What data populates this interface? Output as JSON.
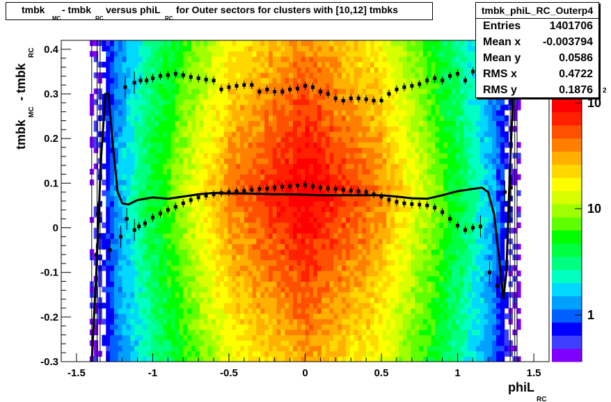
{
  "title": {
    "segments": [
      {
        "text": "tmbk",
        "sub": "MC"
      },
      {
        "text": " - tmbk",
        "sub": "RC"
      },
      {
        "text": " versus phiL",
        "sub": "RC"
      },
      {
        "text": " for Outer sectors for clusters with [10,12] tmbks",
        "sub": ""
      }
    ]
  },
  "stats": {
    "name": "tmbk_phiL_RC_Outerp4",
    "rows": [
      {
        "label": "Entries",
        "value": "1401706"
      },
      {
        "label": "Mean x",
        "value": "-0.003794"
      },
      {
        "label": "Mean y",
        "value": "0.0586"
      },
      {
        "label": "RMS x",
        "value": "0.4722"
      },
      {
        "label": "RMS y",
        "value": "0.1876"
      }
    ]
  },
  "palette": {
    "labels": [
      "1",
      "10",
      "10"
    ],
    "exponent": "2",
    "colors": [
      "#7f00ff",
      "#3f3fff",
      "#0000ff",
      "#0060ff",
      "#00a0ff",
      "#00d8ff",
      "#00ffc0",
      "#00ff80",
      "#00ff40",
      "#00ff00",
      "#60ff00",
      "#a0ff00",
      "#d8ff00",
      "#ffff00",
      "#ffd800",
      "#ffb000",
      "#ff8000",
      "#ff5000",
      "#ff2000",
      "#ff0000"
    ]
  },
  "chart_data": {
    "type": "heatmap",
    "title": "tmbk_MC - tmbk_RC versus phiL_RC for Outer sectors for clusters with [10,12] tmbks",
    "xlabel": "phiL_RC",
    "ylabel": "tmbk_MC - tmbk_RC",
    "xlim": [
      -1.6,
      1.6
    ],
    "ylim": [
      -0.3,
      0.42
    ],
    "x_ticks": [
      "-1.5",
      "-1",
      "-0.5",
      "0",
      "0.5",
      "1",
      "1.5"
    ],
    "y_ticks": [
      "-0.3",
      "-0.2",
      "-0.1",
      "0",
      "0.1",
      "0.2",
      "0.3",
      "0.4"
    ],
    "z_scale": "log",
    "series": [
      {
        "name": "profile",
        "points": [
          [
            -1.37,
            -0.06
          ],
          [
            -1.36,
            0.03
          ],
          [
            -1.28,
            -0.05
          ],
          [
            -1.21,
            -0.02
          ],
          [
            -1.17,
            0.02
          ],
          [
            -1.12,
            -0.005
          ],
          [
            -1.09,
            0.003
          ],
          [
            -1.05,
            0.01
          ],
          [
            -1.0,
            0.023
          ],
          [
            -0.95,
            0.032
          ],
          [
            -0.9,
            0.04
          ],
          [
            -0.85,
            0.047
          ],
          [
            -0.8,
            0.055
          ],
          [
            -0.75,
            0.062
          ],
          [
            -0.7,
            0.068
          ],
          [
            -0.65,
            0.072
          ],
          [
            -0.6,
            0.075
          ],
          [
            -0.55,
            0.078
          ],
          [
            -0.5,
            0.08
          ],
          [
            -0.45,
            0.082
          ],
          [
            -0.4,
            0.083
          ],
          [
            -0.35,
            0.085
          ],
          [
            -0.3,
            0.087
          ],
          [
            -0.25,
            0.088
          ],
          [
            -0.2,
            0.09
          ],
          [
            -0.15,
            0.092
          ],
          [
            -0.1,
            0.093
          ],
          [
            -0.05,
            0.095
          ],
          [
            0.0,
            0.096
          ],
          [
            0.05,
            0.093
          ],
          [
            0.1,
            0.09
          ],
          [
            0.15,
            0.088
          ],
          [
            0.2,
            0.087
          ],
          [
            0.25,
            0.085
          ],
          [
            0.3,
            0.083
          ],
          [
            0.35,
            0.082
          ],
          [
            0.4,
            0.08
          ],
          [
            0.45,
            0.075
          ],
          [
            0.5,
            0.07
          ],
          [
            0.55,
            0.063
          ],
          [
            0.6,
            0.058
          ],
          [
            0.65,
            0.055
          ],
          [
            0.7,
            0.053
          ],
          [
            0.75,
            0.052
          ],
          [
            0.8,
            0.05
          ],
          [
            0.85,
            0.045
          ],
          [
            0.9,
            0.035
          ],
          [
            0.95,
            0.02
          ],
          [
            1.0,
            0.005
          ],
          [
            1.05,
            -0.005
          ],
          [
            1.1,
            0.0
          ],
          [
            1.15,
            0.003
          ],
          [
            1.21,
            -0.1
          ],
          [
            1.26,
            -0.13
          ],
          [
            1.31,
            0.08
          ],
          [
            1.35,
            0.09
          ]
        ]
      },
      {
        "name": "upper",
        "points": [
          [
            -1.18,
            0.315
          ],
          [
            -1.12,
            0.325
          ],
          [
            -1.08,
            0.33
          ],
          [
            -1.04,
            0.33
          ],
          [
            -1.0,
            0.335
          ],
          [
            -0.95,
            0.34
          ],
          [
            -0.9,
            0.342
          ],
          [
            -0.85,
            0.345
          ],
          [
            -0.8,
            0.342
          ],
          [
            -0.75,
            0.338
          ],
          [
            -0.7,
            0.335
          ],
          [
            -0.65,
            0.332
          ],
          [
            -0.6,
            0.33
          ],
          [
            -0.55,
            0.31
          ],
          [
            -0.5,
            0.315
          ],
          [
            -0.45,
            0.318
          ],
          [
            -0.4,
            0.32
          ],
          [
            -0.35,
            0.32
          ],
          [
            -0.3,
            0.305
          ],
          [
            -0.25,
            0.31
          ],
          [
            -0.2,
            0.305
          ],
          [
            -0.15,
            0.305
          ],
          [
            -0.1,
            0.31
          ],
          [
            -0.05,
            0.312
          ],
          [
            0.0,
            0.318
          ],
          [
            0.05,
            0.315
          ],
          [
            0.1,
            0.305
          ],
          [
            0.15,
            0.3
          ],
          [
            0.2,
            0.29
          ],
          [
            0.25,
            0.285
          ],
          [
            0.3,
            0.29
          ],
          [
            0.35,
            0.29
          ],
          [
            0.4,
            0.288
          ],
          [
            0.45,
            0.285
          ],
          [
            0.5,
            0.285
          ],
          [
            0.55,
            0.3
          ],
          [
            0.6,
            0.31
          ],
          [
            0.65,
            0.315
          ],
          [
            0.7,
            0.318
          ],
          [
            0.75,
            0.322
          ],
          [
            0.8,
            0.33
          ],
          [
            0.85,
            0.335
          ],
          [
            0.9,
            0.33
          ],
          [
            0.95,
            0.34
          ],
          [
            1.0,
            0.345
          ],
          [
            1.05,
            0.33
          ],
          [
            1.1,
            0.35
          ],
          [
            1.15,
            0.33
          ]
        ]
      },
      {
        "name": "fit",
        "points": [
          [
            -1.4,
            -0.35
          ],
          [
            -1.37,
            -0.1
          ],
          [
            -1.34,
            0.15
          ],
          [
            -1.31,
            0.3
          ],
          [
            -1.29,
            0.3
          ],
          [
            -1.26,
            0.18
          ],
          [
            -1.23,
            0.08
          ],
          [
            -1.2,
            0.055
          ],
          [
            -1.16,
            0.052
          ],
          [
            -1.1,
            0.062
          ],
          [
            -1.0,
            0.068
          ],
          [
            -0.9,
            0.065
          ],
          [
            -0.8,
            0.07
          ],
          [
            -0.7,
            0.075
          ],
          [
            -0.6,
            0.078
          ],
          [
            -0.5,
            0.077
          ],
          [
            -0.4,
            0.077
          ],
          [
            -0.3,
            0.076
          ],
          [
            -0.2,
            0.075
          ],
          [
            -0.1,
            0.075
          ],
          [
            0.0,
            0.074
          ],
          [
            0.1,
            0.073
          ],
          [
            0.2,
            0.073
          ],
          [
            0.3,
            0.073
          ],
          [
            0.4,
            0.073
          ],
          [
            0.5,
            0.073
          ],
          [
            0.6,
            0.07
          ],
          [
            0.7,
            0.066
          ],
          [
            0.8,
            0.065
          ],
          [
            0.9,
            0.073
          ],
          [
            1.0,
            0.082
          ],
          [
            1.1,
            0.087
          ],
          [
            1.16,
            0.09
          ],
          [
            1.2,
            0.08
          ],
          [
            1.24,
            0.03
          ],
          [
            1.27,
            -0.06
          ],
          [
            1.3,
            -0.16
          ],
          [
            1.32,
            -0.1
          ],
          [
            1.34,
            0.1
          ],
          [
            1.37,
            0.35
          ]
        ]
      }
    ]
  }
}
